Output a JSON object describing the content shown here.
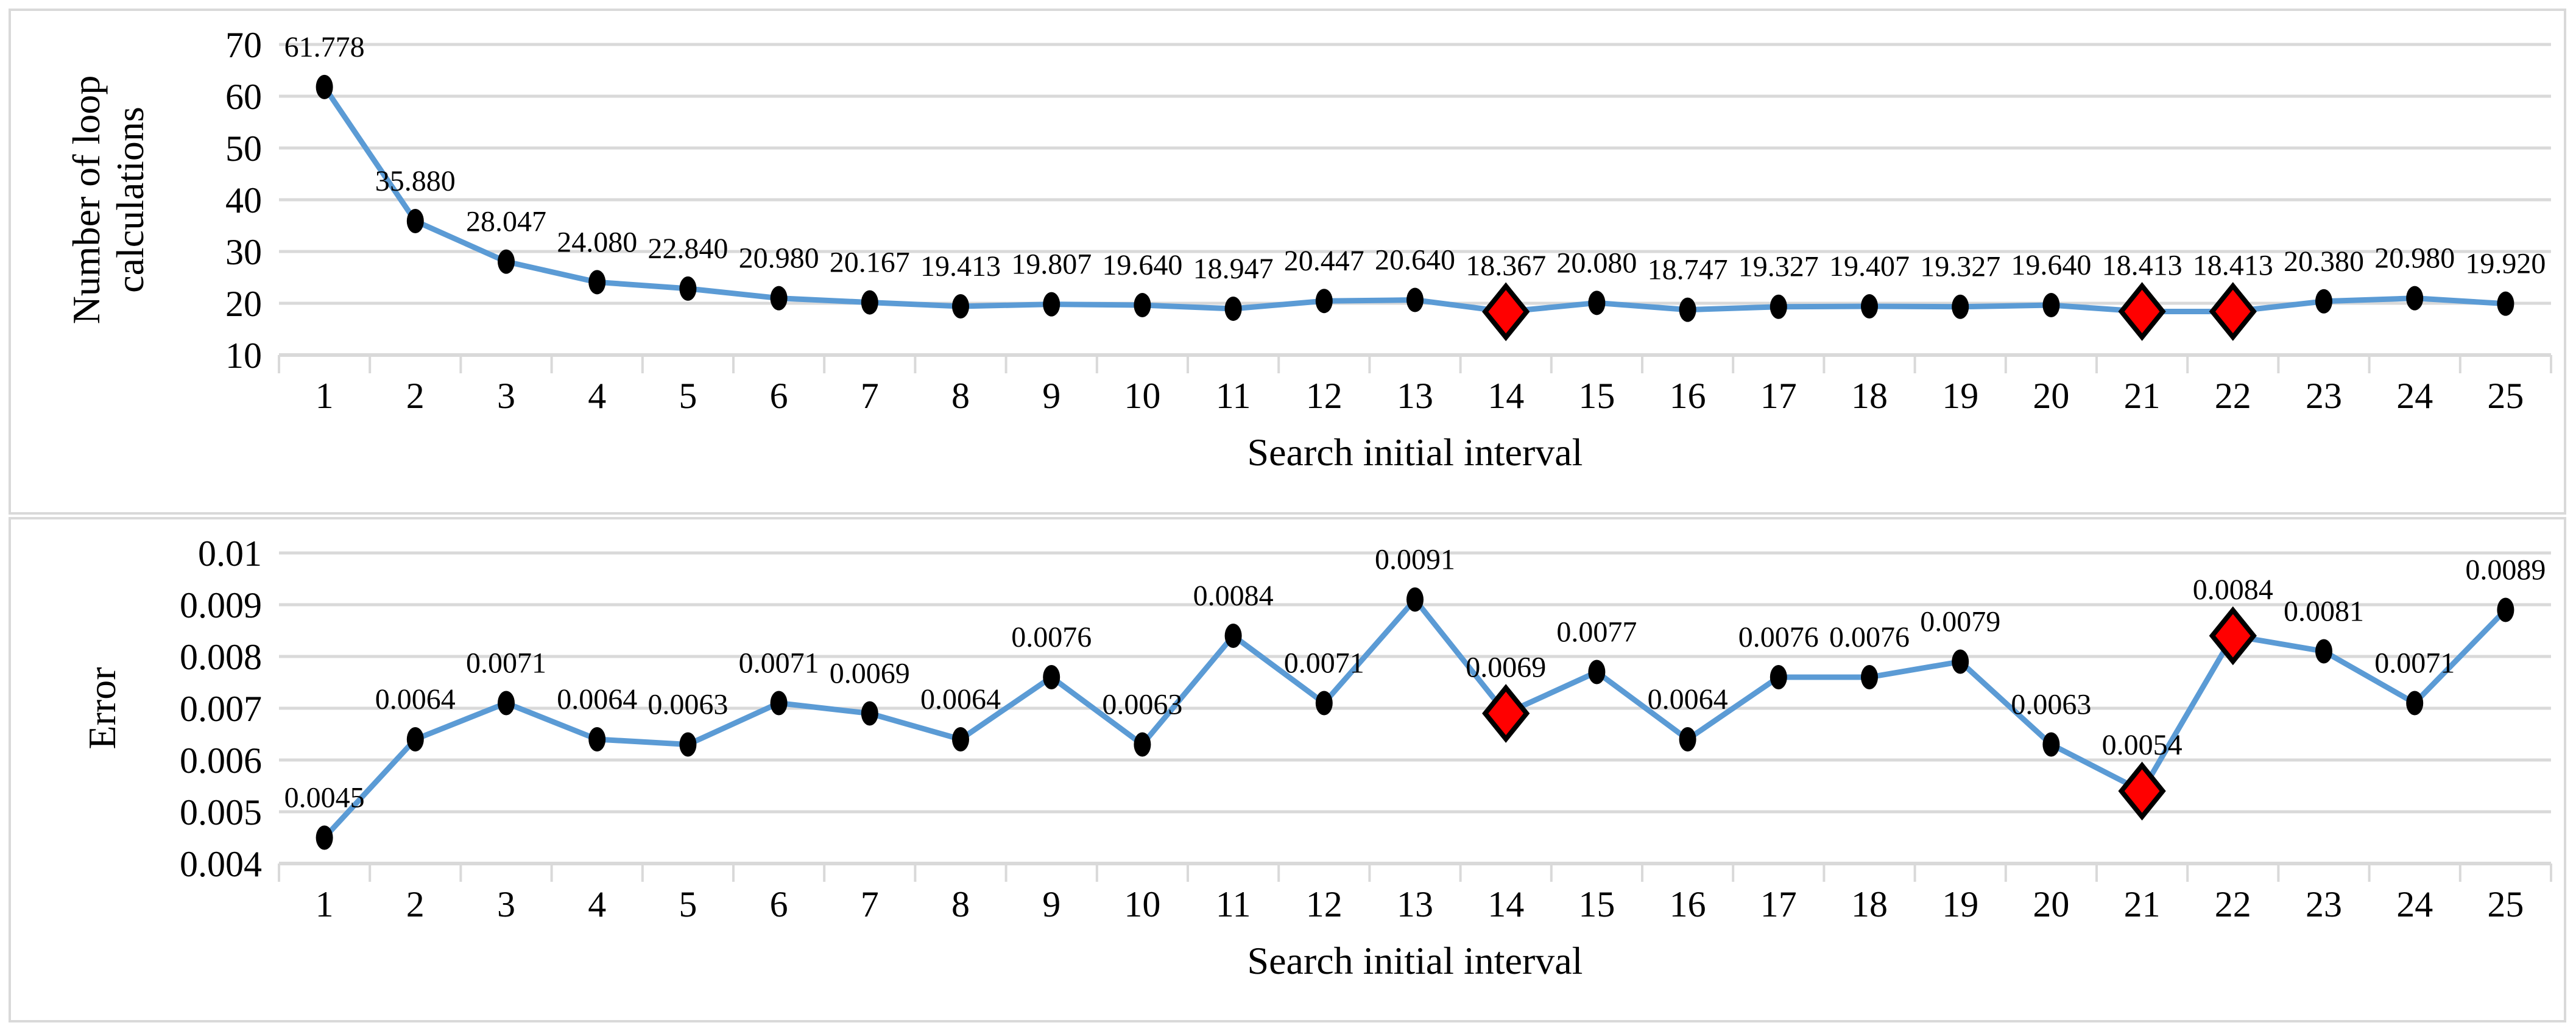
{
  "figure": {
    "background": "#ffffff",
    "panel_border_color": "#D9D9D9"
  },
  "colors": {
    "line": "#5B9BD5",
    "marker_fill": "#000000",
    "highlight_fill": "#FF0000",
    "highlight_stroke": "#000000",
    "gridline": "#D9D9D9",
    "axis_line": "#D9D9D9",
    "tick_mark": "#D9D9D9",
    "label_text": "#000000"
  },
  "chart_data": [
    {
      "type": "line",
      "title": "",
      "xlabel": "Search initial interval",
      "ylabel": "Number of loop calculations",
      "ylabel_lines": [
        "Number of loop",
        "calculations"
      ],
      "x": [
        1,
        2,
        3,
        4,
        5,
        6,
        7,
        8,
        9,
        10,
        11,
        12,
        13,
        14,
        15,
        16,
        17,
        18,
        19,
        20,
        21,
        22,
        23,
        24,
        25
      ],
      "values": [
        61.778,
        35.88,
        28.047,
        24.08,
        22.84,
        20.98,
        20.167,
        19.413,
        19.807,
        19.64,
        18.947,
        20.447,
        20.64,
        18.367,
        20.08,
        18.747,
        19.327,
        19.407,
        19.327,
        19.64,
        18.413,
        18.413,
        20.38,
        20.98,
        19.92
      ],
      "point_labels": [
        "61.778",
        "35.880",
        "28.047",
        "24.080",
        "22.840",
        "20.980",
        "20.167",
        "19.413",
        "19.807",
        "19.640",
        "18.947",
        "20.447",
        "20.640",
        "18.367",
        "20.080",
        "18.747",
        "19.327",
        "19.407",
        "19.327",
        "19.640",
        "18.413",
        "18.413",
        "20.380",
        "20.980",
        "19.920"
      ],
      "highlight_x": [
        14,
        21,
        22
      ],
      "marker": "black-ellipse",
      "highlight_marker": "red-diamond",
      "ylim": [
        10,
        70
      ],
      "yticks": [
        {
          "value": 10,
          "label": "10"
        },
        {
          "value": 20,
          "label": "20"
        },
        {
          "value": 30,
          "label": "30"
        },
        {
          "value": 40,
          "label": "40"
        },
        {
          "value": 50,
          "label": "50"
        },
        {
          "value": 60,
          "label": "60"
        },
        {
          "value": 70,
          "label": "70"
        }
      ],
      "grid": "horizontal",
      "legend": "none"
    },
    {
      "type": "line",
      "title": "",
      "xlabel": "Search initial interval",
      "ylabel": "Error",
      "ylabel_lines": [
        "Error"
      ],
      "x": [
        1,
        2,
        3,
        4,
        5,
        6,
        7,
        8,
        9,
        10,
        11,
        12,
        13,
        14,
        15,
        16,
        17,
        18,
        19,
        20,
        21,
        22,
        23,
        24,
        25
      ],
      "values": [
        0.0045,
        0.0064,
        0.0071,
        0.0064,
        0.0063,
        0.0071,
        0.0069,
        0.0064,
        0.0076,
        0.0063,
        0.0084,
        0.0071,
        0.0091,
        0.0069,
        0.0077,
        0.0064,
        0.0076,
        0.0076,
        0.0079,
        0.0063,
        0.0054,
        0.0084,
        0.0081,
        0.0071,
        0.0089
      ],
      "point_labels": [
        "0.0045",
        "0.0064",
        "0.0071",
        "0.0064",
        "0.0063",
        "0.0071",
        "0.0069",
        "0.0064",
        "0.0076",
        "0.0063",
        "0.0084",
        "0.0071",
        "0.0091",
        "0.0069",
        "0.0077",
        "0.0064",
        "0.0076",
        "0.0076",
        "0.0079",
        "0.0063",
        "0.0054",
        "0.0084",
        "0.0081",
        "0.0071",
        "0.0089"
      ],
      "highlight_x": [
        14,
        21,
        22
      ],
      "marker": "black-ellipse",
      "highlight_marker": "red-diamond",
      "ylim": [
        0.004,
        0.01
      ],
      "yticks": [
        {
          "value": 0.004,
          "label": "0.004"
        },
        {
          "value": 0.005,
          "label": "0.005"
        },
        {
          "value": 0.006,
          "label": "0.006"
        },
        {
          "value": 0.007,
          "label": "0.007"
        },
        {
          "value": 0.008,
          "label": "0.008"
        },
        {
          "value": 0.009,
          "label": "0.009"
        },
        {
          "value": 0.01,
          "label": "0.01"
        }
      ],
      "grid": "horizontal",
      "legend": "none"
    }
  ]
}
